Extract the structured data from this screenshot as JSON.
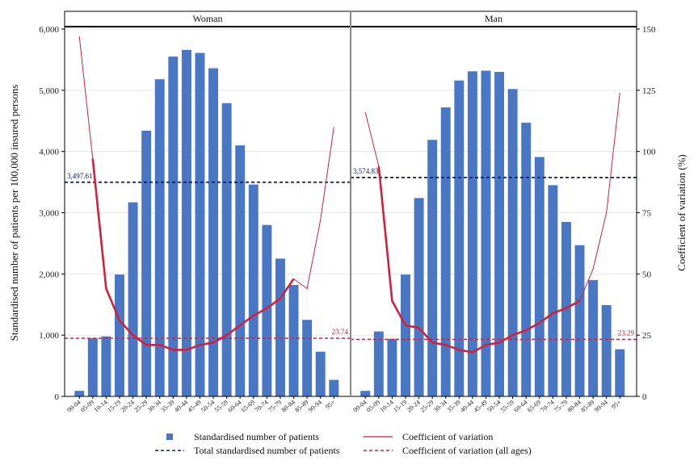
{
  "chart_data": {
    "type": "bar",
    "categories": [
      "00-04",
      "05-09",
      "10-14",
      "15-19",
      "20-24",
      "25-29",
      "30-34",
      "35-39",
      "40-44",
      "45-49",
      "50-54",
      "55-59",
      "60-64",
      "65-69",
      "70-74",
      "75-79",
      "80-84",
      "85-89",
      "90-94",
      "95+"
    ],
    "panels": [
      {
        "title": "Woman",
        "values": [
          90,
          950,
          980,
          1990,
          3170,
          4340,
          5180,
          5550,
          5660,
          5610,
          5360,
          4790,
          4100,
          3460,
          2800,
          2250,
          1820,
          1250,
          730,
          270
        ],
        "cv": [
          147,
          97,
          44,
          31,
          25,
          21,
          21,
          19,
          19,
          21,
          22,
          25,
          29,
          33,
          36,
          40,
          48,
          44,
          72,
          110
        ],
        "total": 3497.61,
        "total_label": "3,497.61",
        "cv_all": 23.74,
        "cv_all_label": "23.74"
      },
      {
        "title": "Man",
        "values": [
          90,
          1060,
          940,
          1990,
          3240,
          4190,
          4720,
          5160,
          5310,
          5320,
          5300,
          5020,
          4470,
          3910,
          3450,
          2850,
          2470,
          1900,
          1490,
          770
        ],
        "cv": [
          116,
          94,
          39,
          29,
          28,
          22,
          21,
          19,
          18,
          21,
          22,
          25,
          27,
          30,
          34,
          36,
          39,
          52,
          75,
          124
        ],
        "total": 3574.83,
        "total_label": "3,574.83",
        "cv_all": 23.29,
        "cv_all_label": "23.29"
      }
    ],
    "y_left": {
      "label": "Standardised number of patients per 100,000 insured persons",
      "min": 0,
      "max": 6000,
      "ticks": [
        0,
        1000,
        2000,
        3000,
        4000,
        5000,
        6000
      ],
      "tick_labels": [
        "0",
        "1,000",
        "2,000",
        "3,000",
        "4,000",
        "5,000",
        "6,000"
      ]
    },
    "y_right": {
      "label": "Coefficient of variation (%)",
      "min": 0,
      "max": 150,
      "ticks": [
        0,
        25,
        50,
        75,
        100,
        125,
        150
      ],
      "tick_labels": [
        "0",
        "25",
        "50",
        "75",
        "100",
        "125",
        "150"
      ]
    },
    "legend": [
      {
        "label": "Standardised number of patients",
        "kind": "bar"
      },
      {
        "label": "Coefficient of variation",
        "kind": "line"
      },
      {
        "label": "Total standardised number of patients",
        "kind": "dash-navy"
      },
      {
        "label": "Coefficient of variation (all ages)",
        "kind": "dash-red"
      }
    ],
    "colors": {
      "bar": "#4a77c4",
      "cv": "#d2213f",
      "total": "#0d1a7a",
      "cv_all": "#d2213f"
    },
    "grid": "horizontal",
    "legend_position": "bottom"
  }
}
